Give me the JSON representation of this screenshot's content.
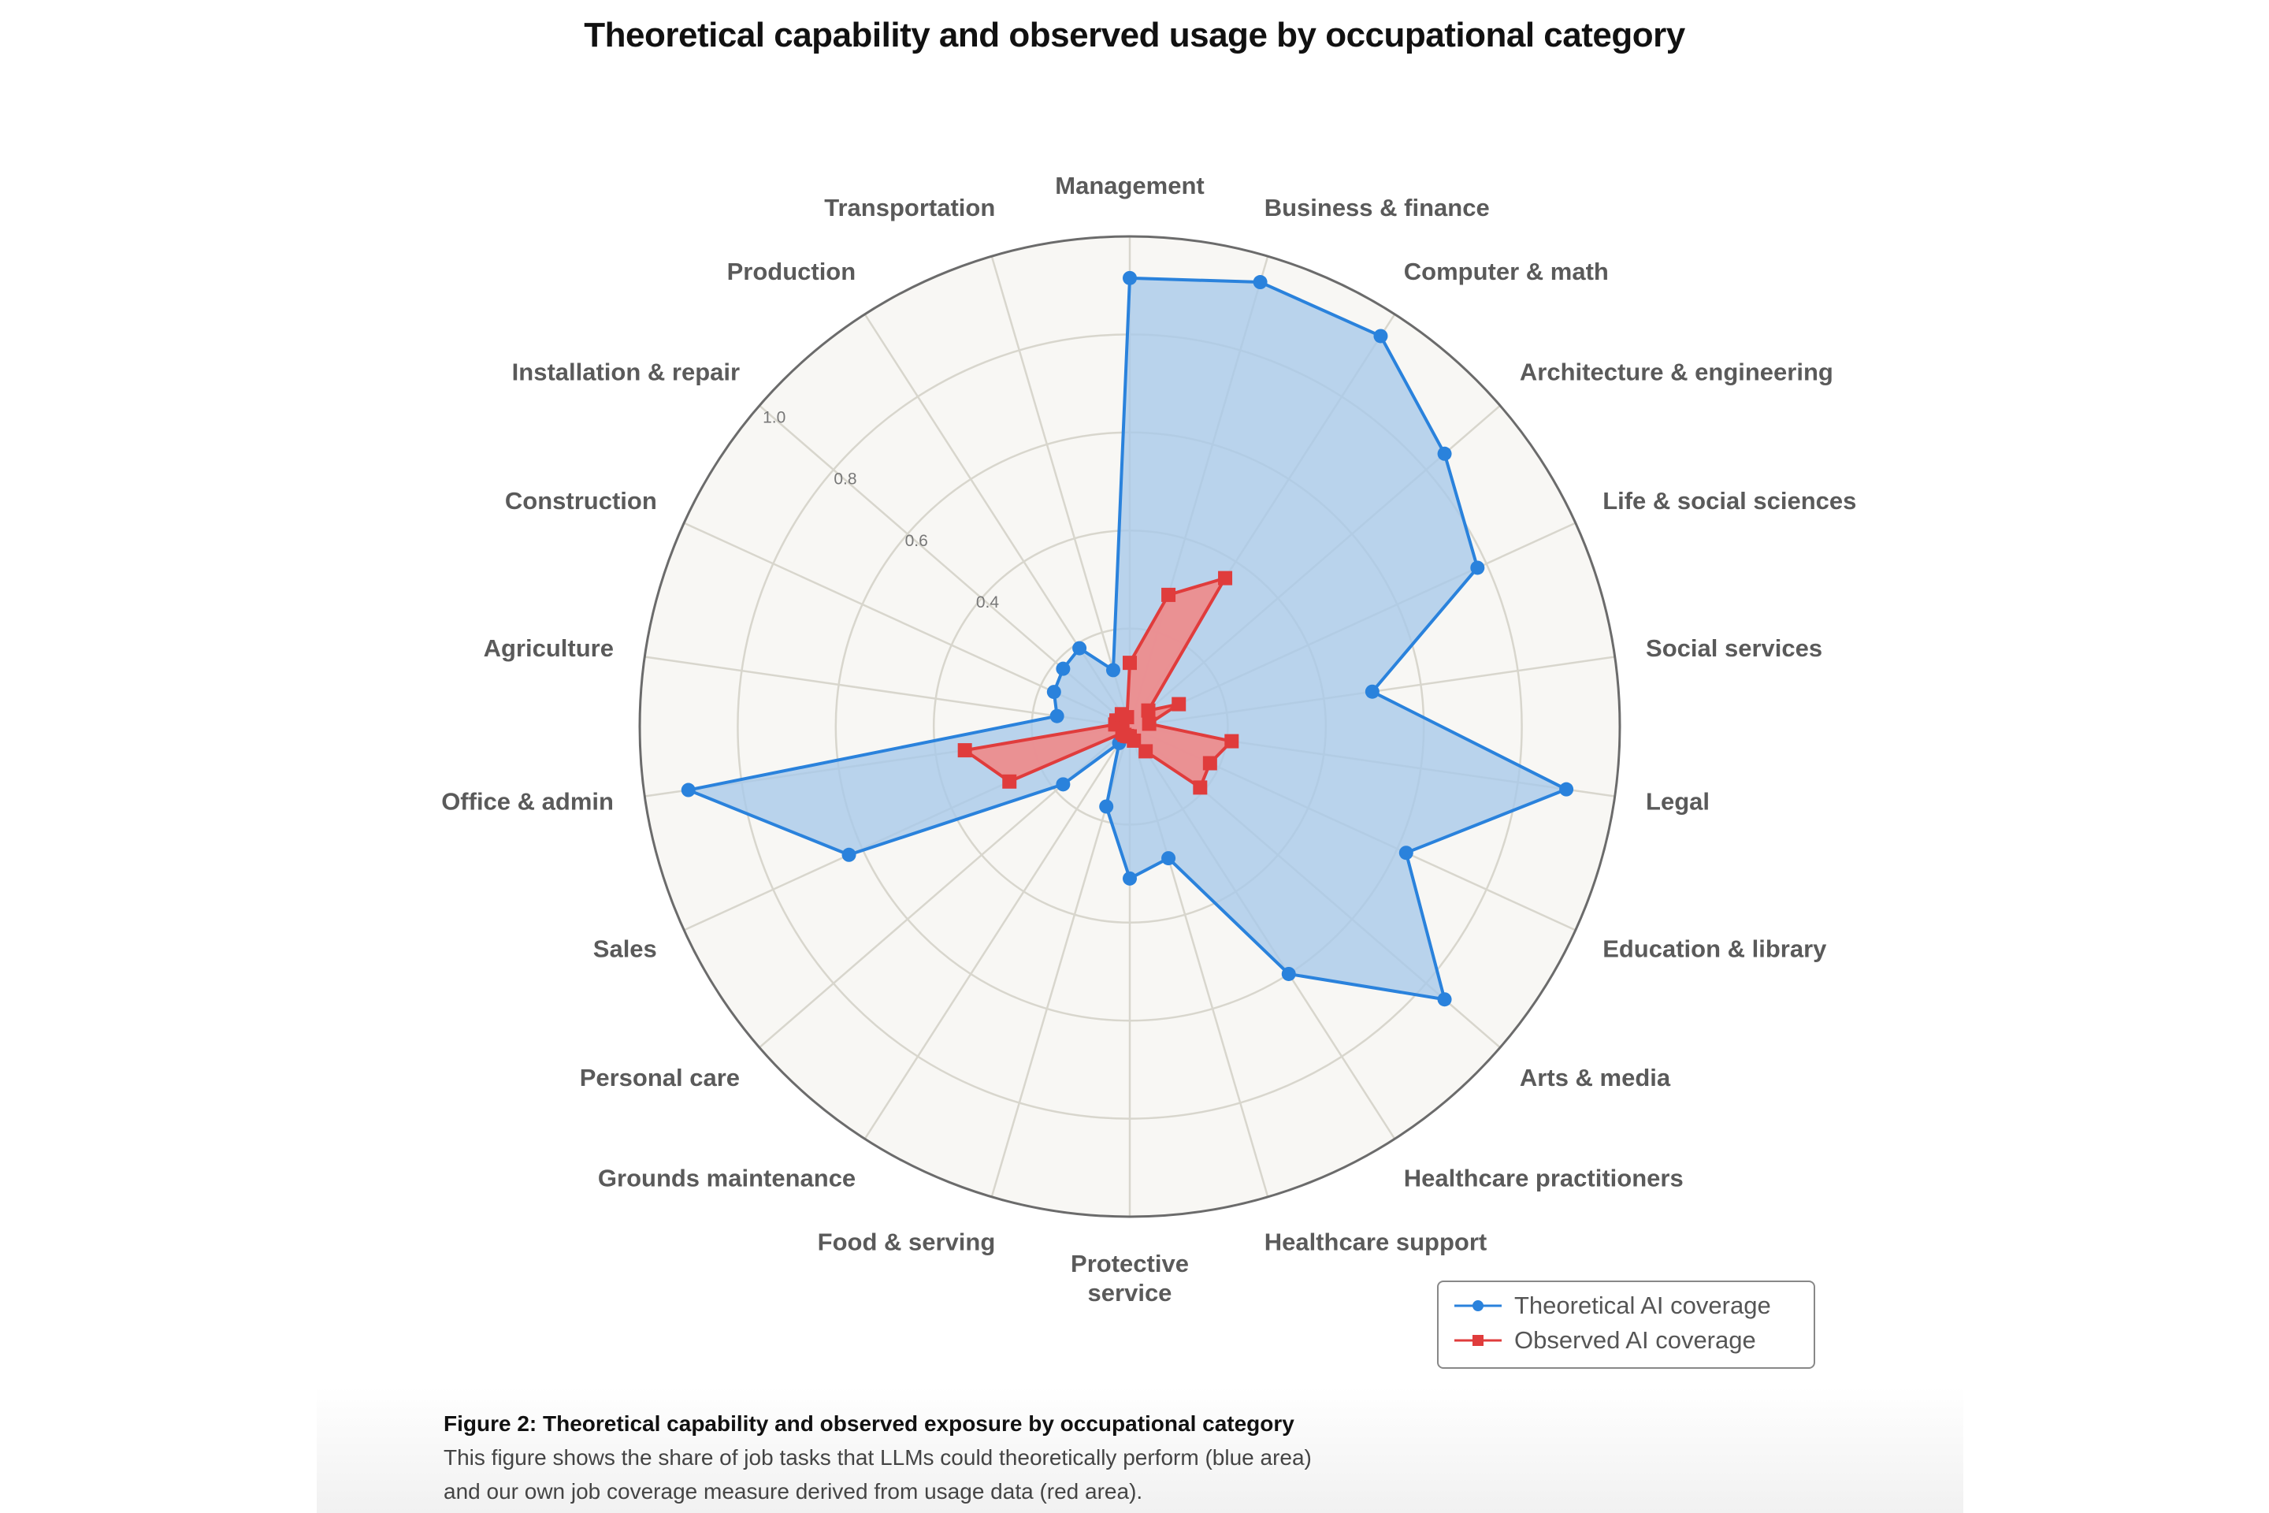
{
  "chart_data": {
    "type": "radar",
    "title": "Theoretical capability and observed usage by occupational category",
    "categories": [
      "Management",
      "Business & finance",
      "Computer & math",
      "Architecture & engineering",
      "Life & social sciences",
      "Social services",
      "Legal",
      "Education & library",
      "Arts & media",
      "Healthcare practitioners",
      "Healthcare support",
      "Protective service",
      "Food & serving",
      "Grounds maintenance",
      "Personal care",
      "Sales",
      "Office & admin",
      "Agriculture",
      "Construction",
      "Installation & repair",
      "Production",
      "Transportation"
    ],
    "series": [
      {
        "name": "Theoretical AI coverage",
        "color": "#2a82dc",
        "fill": "#a9c9ea",
        "marker": "circle",
        "values": [
          0.915,
          0.945,
          0.947,
          0.85,
          0.78,
          0.5,
          0.9,
          0.62,
          0.85,
          0.6,
          0.28,
          0.31,
          0.17,
          0.04,
          0.18,
          0.63,
          0.91,
          0.15,
          0.17,
          0.18,
          0.19,
          0.12
        ]
      },
      {
        "name": "Observed AI coverage",
        "color": "#e03c3c",
        "fill": "#f08a8a",
        "marker": "square",
        "values": [
          0.13,
          0.28,
          0.36,
          0.05,
          0.11,
          0.04,
          0.21,
          0.18,
          0.19,
          0.06,
          0.03,
          0.02,
          0.02,
          0.02,
          0.02,
          0.27,
          0.34,
          0.03,
          0.03,
          0.02,
          0.03,
          0.02
        ]
      }
    ],
    "rlim": [
      0,
      1.0
    ],
    "rticks": [
      "0.4",
      "0.6",
      "0.8",
      "1.0"
    ],
    "grid": true,
    "legend_position": "bottom-right"
  },
  "caption": {
    "heading": "Figure 2: Theoretical capability and observed exposure by occupational category",
    "body": "This figure shows the share of job tasks that LLMs could theoretically perform (blue area) and our own job coverage measure derived from usage data (red area)."
  }
}
